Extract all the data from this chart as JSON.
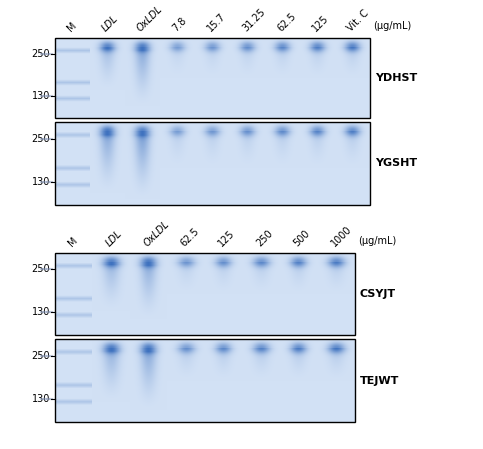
{
  "fig_width": 4.83,
  "fig_height": 4.49,
  "bg_color": "#ffffff",
  "top_group": {
    "header_labels": [
      "M",
      "LDL",
      "OxLDL",
      "7.8",
      "15.7",
      "31.25",
      "62.5",
      "125",
      "Vit. C"
    ],
    "unit_label": "(μg/mL)",
    "panel1_label": "YDHST",
    "panel2_label": "YGSHT",
    "num_lanes": 9
  },
  "bottom_group": {
    "header_labels": [
      "M",
      "LDL",
      "OxLDL",
      "62.5",
      "125",
      "250",
      "500",
      "1000"
    ],
    "unit_label": "(μg/mL)",
    "panel1_label": "CSYJT",
    "panel2_label": "TEJWT",
    "num_lanes": 8
  },
  "marker_labels": [
    "250",
    "130"
  ],
  "gel_base_r": 210,
  "gel_base_g": 225,
  "gel_base_b": 245
}
